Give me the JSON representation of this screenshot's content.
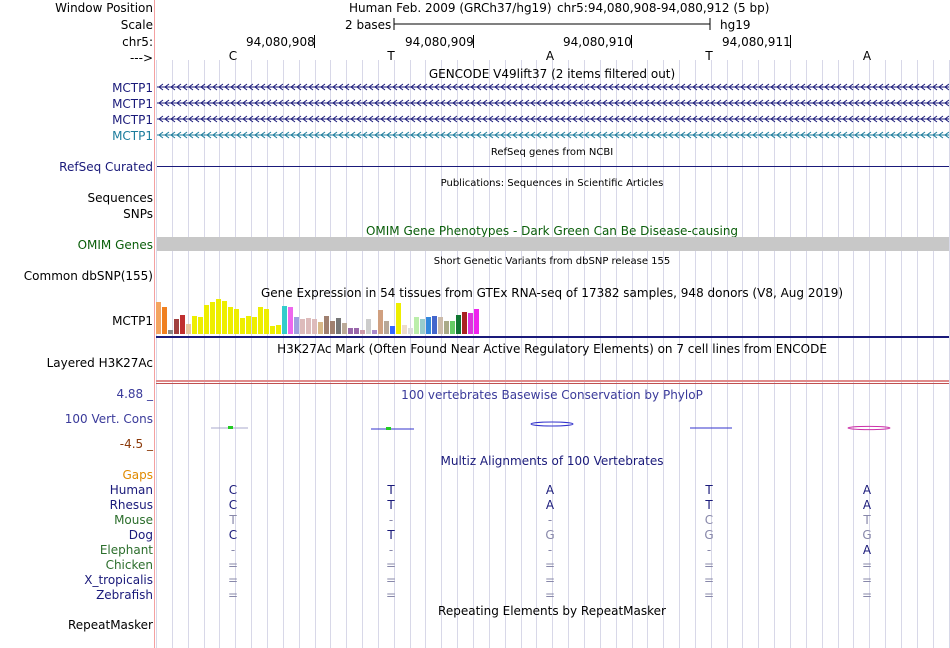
{
  "header": {
    "window_position_label": "Window Position",
    "scale_label": "Scale",
    "chrom_label": "chr5:",
    "strand_label": "--->",
    "assembly": "Human Feb. 2009 (GRCh37/hg19)",
    "position": "chr5:94,080,908-94,080,912 (5 bp)",
    "scale_text": "2 bases",
    "db": "hg19",
    "coords": [
      "94,080,908",
      "94,080,909",
      "94,080,910",
      "94,080,911"
    ],
    "bases": [
      "C",
      "T",
      "A",
      "T",
      "A"
    ]
  },
  "tracks": {
    "gencode": {
      "title": "GENCODE V49lift37 (2 items filtered out)",
      "items": [
        "MCTP1",
        "MCTP1",
        "MCTP1",
        "MCTP1"
      ]
    },
    "refseq": {
      "title": "RefSeq genes from NCBI",
      "label": "RefSeq Curated"
    },
    "publications": {
      "title": "Publications: Sequences in Scientific Articles",
      "label1": "Sequences",
      "label2": "SNPs"
    },
    "omim": {
      "title": "OMIM Gene Phenotypes - Dark Green Can Be Disease-causing",
      "label": "OMIM Genes"
    },
    "dbsnp": {
      "title": "Short Genetic Variants from dbSNP release 155",
      "label": "Common dbSNP(155)"
    },
    "gtex": {
      "title": "Gene Expression in 54 tissues from GTEx RNA-seq of 17382 samples, 948 donors (V8, Aug 2019)",
      "label": "MCTP1"
    },
    "h3k27ac": {
      "title": "H3K27Ac Mark (Often Found Near Active Regulatory Elements) on 7 cell lines from ENCODE",
      "label": "Layered H3K27Ac"
    },
    "phylop": {
      "title": "100 vertebrates Basewise Conservation by PhyloP",
      "label": "100 Vert. Cons",
      "max": "4.88 _",
      "min": "-4.5 _"
    },
    "multiz": {
      "title": "Multiz Alignments of 100 Vertebrates",
      "gaps_label": "Gaps",
      "species": [
        {
          "name": "Human",
          "bases": [
            "C",
            "T",
            "A",
            "T",
            "A"
          ]
        },
        {
          "name": "Rhesus",
          "bases": [
            "C",
            "T",
            "A",
            "T",
            "A"
          ]
        },
        {
          "name": "Mouse",
          "bases": [
            "T",
            "-",
            "-",
            "C",
            "T"
          ]
        },
        {
          "name": "Dog",
          "bases": [
            "C",
            "T",
            "G",
            "G",
            "G"
          ]
        },
        {
          "name": "Elephant",
          "bases": [
            "-",
            "-",
            "-",
            "-",
            "A"
          ]
        },
        {
          "name": "Chicken",
          "bases": [
            "=",
            "=",
            "=",
            "=",
            "="
          ]
        },
        {
          "name": "X_tropicalis",
          "bases": [
            "=",
            "=",
            "=",
            "=",
            "="
          ]
        },
        {
          "name": "Zebrafish",
          "bases": [
            "=",
            "=",
            "=",
            "=",
            "="
          ]
        }
      ]
    },
    "repeatmasker": {
      "title": "Repeating Elements by RepeatMasker",
      "label": "RepeatMasker"
    }
  },
  "gtex_bars": [
    {
      "v": 0.92,
      "c": "#f4a460"
    },
    {
      "v": 0.78,
      "c": "#f08020"
    },
    {
      "v": 0.12,
      "c": "#888888"
    },
    {
      "v": 0.42,
      "c": "#a04040"
    },
    {
      "v": 0.55,
      "c": "#c03030"
    },
    {
      "v": 0.28,
      "c": "#e8c8a0"
    },
    {
      "v": 0.5,
      "c": "#eeee00"
    },
    {
      "v": 0.48,
      "c": "#eeee00"
    },
    {
      "v": 0.82,
      "c": "#eeee00"
    },
    {
      "v": 0.9,
      "c": "#eeee00"
    },
    {
      "v": 1.0,
      "c": "#eeee00"
    },
    {
      "v": 0.95,
      "c": "#eeee00"
    },
    {
      "v": 0.78,
      "c": "#eeee00"
    },
    {
      "v": 0.72,
      "c": "#eeee00"
    },
    {
      "v": 0.45,
      "c": "#eeee00"
    },
    {
      "v": 0.52,
      "c": "#eeee00"
    },
    {
      "v": 0.48,
      "c": "#eeee00"
    },
    {
      "v": 0.78,
      "c": "#eeee00"
    },
    {
      "v": 0.7,
      "c": "#eeee00"
    },
    {
      "v": 0.22,
      "c": "#eeee00"
    },
    {
      "v": 0.25,
      "c": "#eeee00"
    },
    {
      "v": 0.8,
      "c": "#33cccc"
    },
    {
      "v": 0.78,
      "c": "#ee66ee"
    },
    {
      "v": 0.48,
      "c": "#a0a0e0"
    },
    {
      "v": 0.42,
      "c": "#ddbbbb"
    },
    {
      "v": 0.45,
      "c": "#ddbbbb"
    },
    {
      "v": 0.42,
      "c": "#ddbbbb"
    },
    {
      "v": 0.35,
      "c": "#d8b888"
    },
    {
      "v": 0.5,
      "c": "#a08070"
    },
    {
      "v": 0.38,
      "c": "#a08070"
    },
    {
      "v": 0.45,
      "c": "#777777"
    },
    {
      "v": 0.3,
      "c": "#bbaa99"
    },
    {
      "v": 0.18,
      "c": "#9966aa"
    },
    {
      "v": 0.18,
      "c": "#9966aa"
    },
    {
      "v": 0.12,
      "c": "#cc99aa"
    },
    {
      "v": 0.42,
      "c": "#cccccc"
    },
    {
      "v": 0.12,
      "c": "#aa88cc"
    },
    {
      "v": 0.68,
      "c": "#d0a080"
    },
    {
      "v": 0.38,
      "c": "#b8a898"
    },
    {
      "v": 0.22,
      "c": "#3366ff"
    },
    {
      "v": 0.88,
      "c": "#eeee00"
    },
    {
      "v": 0.25,
      "c": "#eeddcc"
    },
    {
      "v": 0.18,
      "c": "#dddddd"
    },
    {
      "v": 0.48,
      "c": "#bbeeaa"
    },
    {
      "v": 0.42,
      "c": "#99cccc"
    },
    {
      "v": 0.48,
      "c": "#3388dd"
    },
    {
      "v": 0.52,
      "c": "#4466cc"
    },
    {
      "v": 0.48,
      "c": "#ccbbaa"
    },
    {
      "v": 0.38,
      "c": "#aaaa88"
    },
    {
      "v": 0.38,
      "c": "#66cc66"
    },
    {
      "v": 0.55,
      "c": "#117733"
    },
    {
      "v": 0.62,
      "c": "#aa2222"
    },
    {
      "v": 0.6,
      "c": "#dd33dd"
    },
    {
      "v": 0.72,
      "c": "#ee22ee"
    }
  ],
  "colors": {
    "navy": "#1a1a7a",
    "teal": "#1c7c9c",
    "omim_bar": "#c8c8c8",
    "grid": "#d8d8e8"
  }
}
